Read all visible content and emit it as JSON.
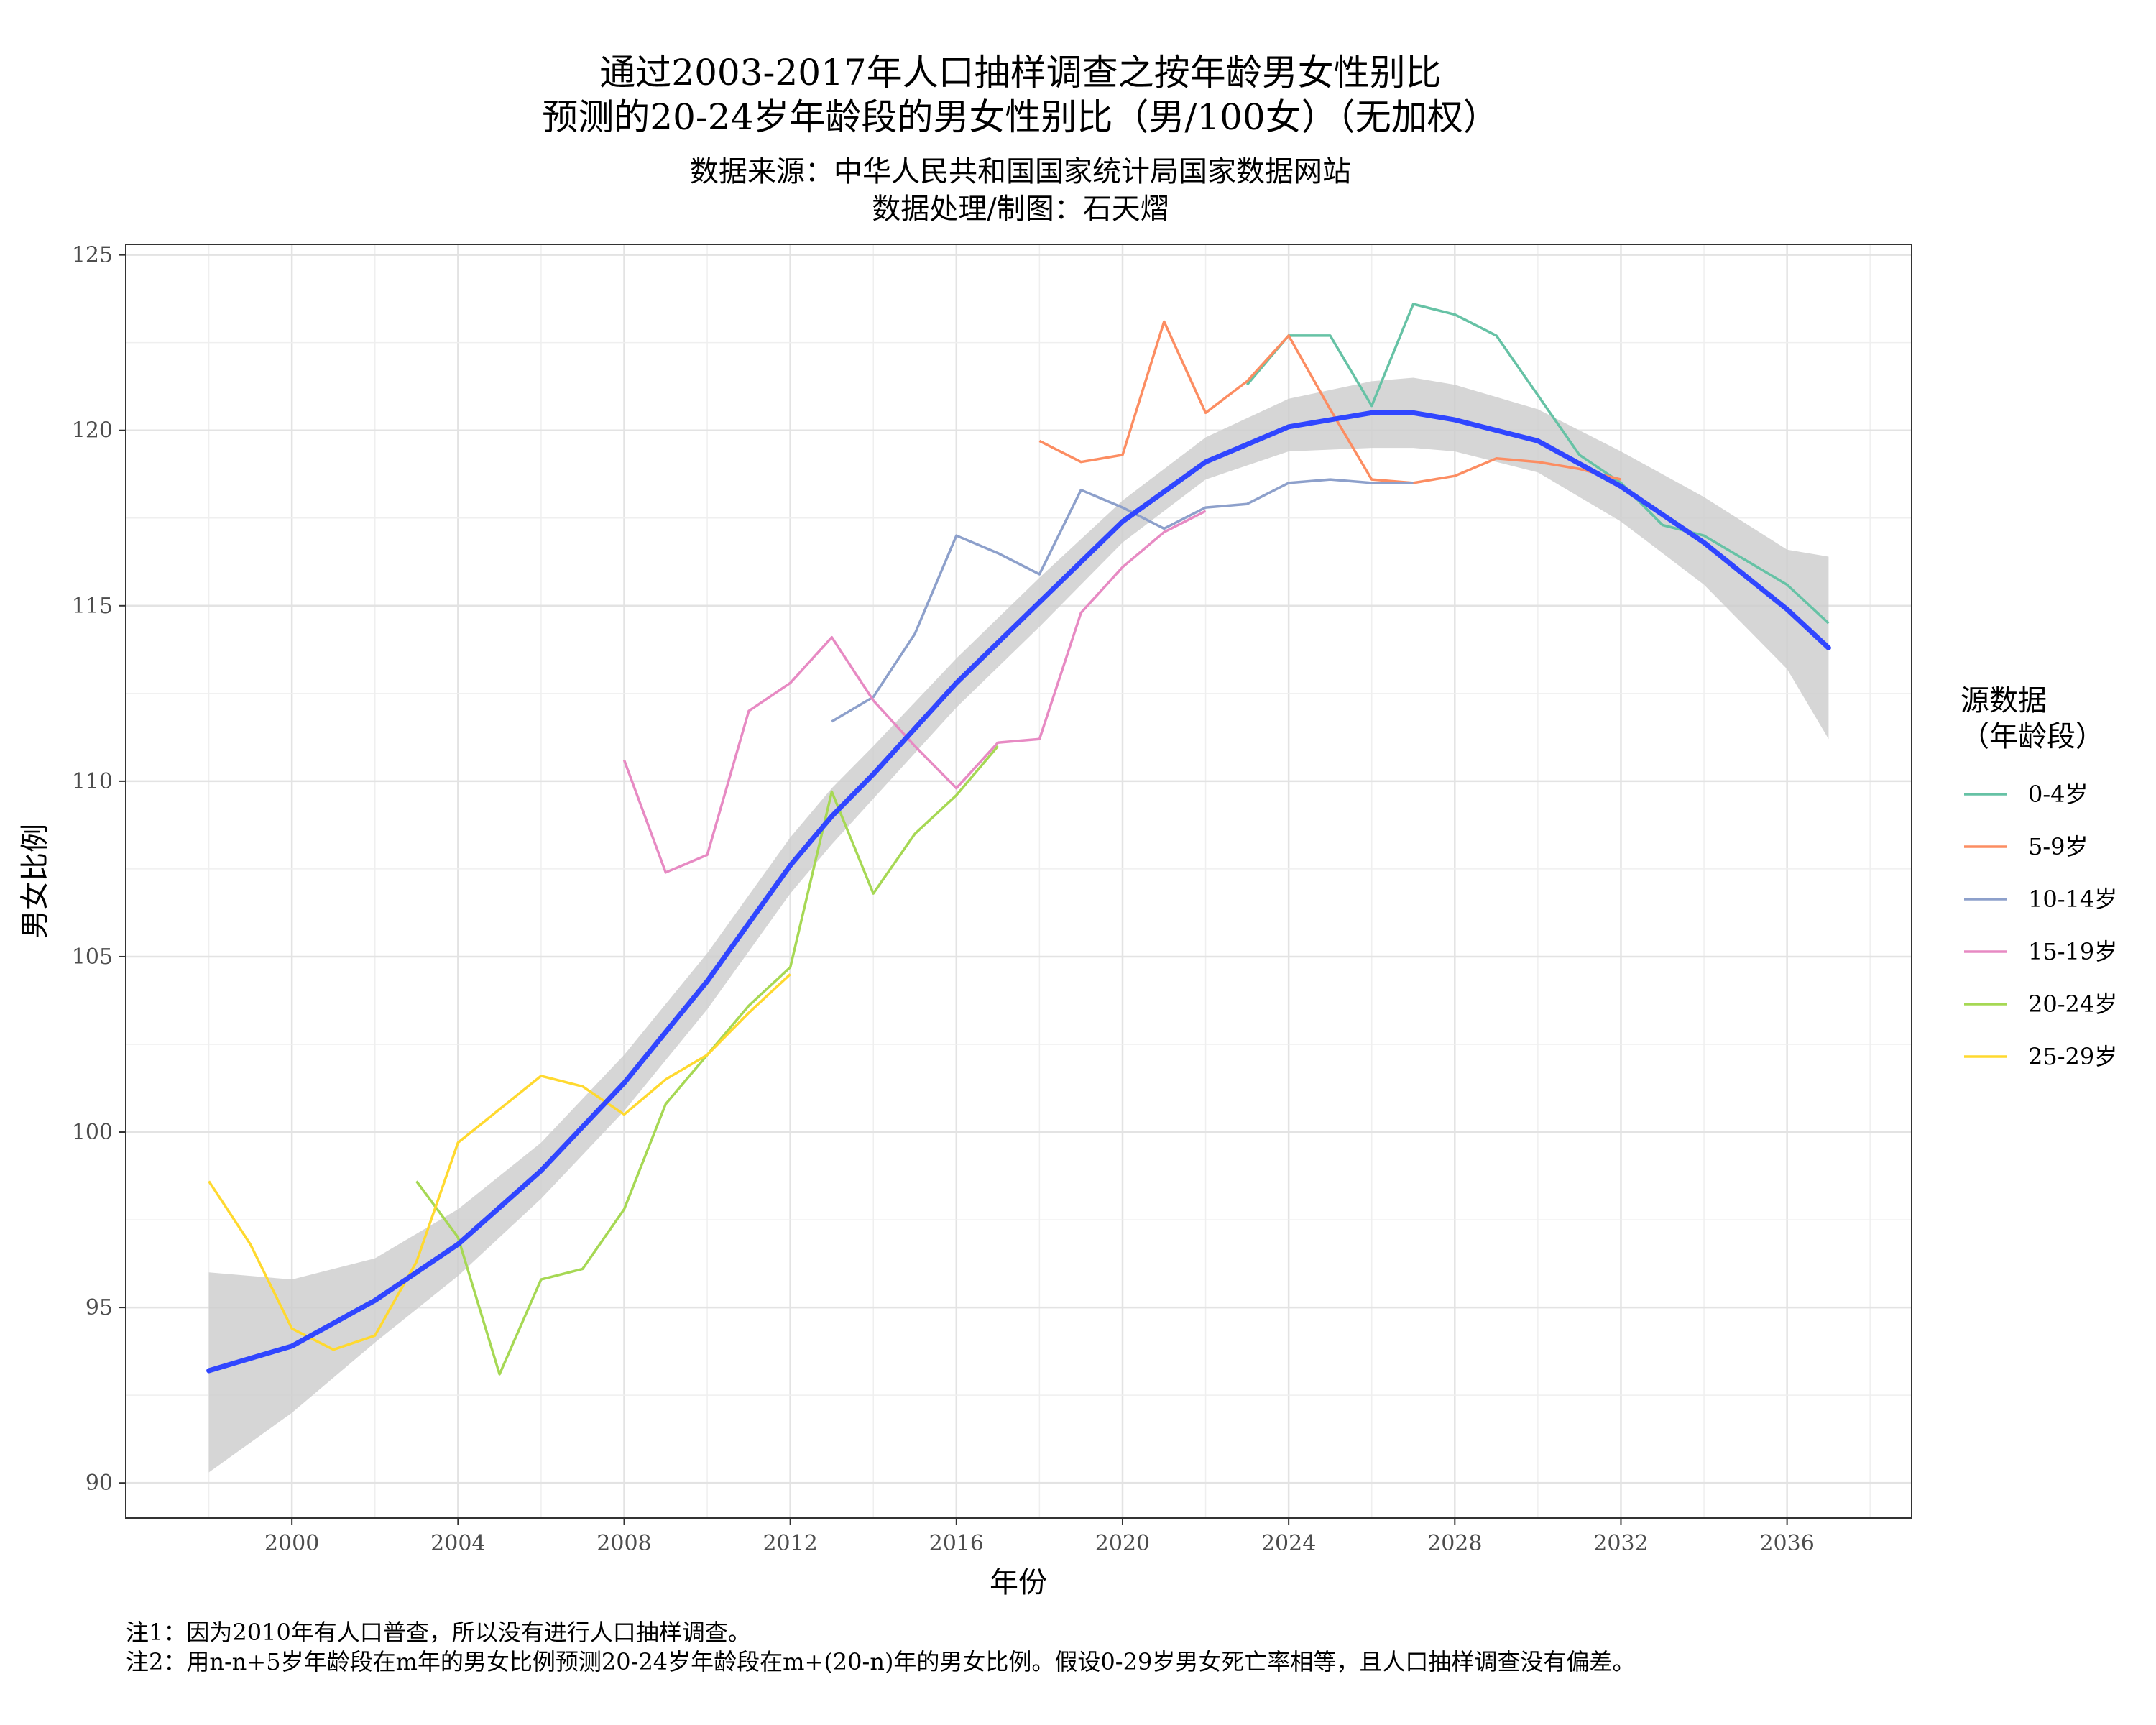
{
  "title_lines": [
    "通过2003-2017年人口抽样调查之按年龄男女性别比",
    "预测的20-24岁年龄段的男女性别比（男/100女）（无加权）"
  ],
  "subtitle_lines": [
    "数据来源：中华人民共和国国家统计局国家数据网站",
    "数据处理/制图：石天熠"
  ],
  "caption_lines": [
    "注1：因为2010年有人口普查，所以没有进行人口抽样调查。",
    "注2：用n-n+5岁年龄段在m年的男女比例预测20-24岁年龄段在m+(20-n)年的男女比例。假设0-29岁男女死亡率相等，且人口抽样调查没有偏差。"
  ],
  "chart_data": {
    "type": "line",
    "xlabel": "年份",
    "ylabel": "男女比例",
    "xlim": [
      1996,
      2039
    ],
    "ylim": [
      89,
      125.3
    ],
    "x_ticks": [
      2000,
      2004,
      2008,
      2012,
      2016,
      2020,
      2024,
      2028,
      2032,
      2036
    ],
    "y_ticks": [
      90,
      95,
      100,
      105,
      110,
      115,
      120,
      125
    ],
    "grid": true,
    "legend": {
      "title_lines": [
        "源数据",
        "（年龄段）"
      ],
      "placement": "right"
    },
    "series": [
      {
        "name": "0-4岁",
        "color": "#66c2a5",
        "x": [
          2023,
          2024,
          2025,
          2026,
          2027,
          2028,
          2029,
          2030,
          2031,
          2032,
          2033,
          2034,
          2035,
          2036,
          2037
        ],
        "y": [
          121.3,
          122.7,
          122.7,
          120.7,
          123.6,
          123.3,
          122.7,
          121.0,
          119.3,
          118.5,
          117.3,
          117.0,
          116.3,
          115.6,
          114.5
        ]
      },
      {
        "name": "5-9岁",
        "color": "#fc8d62",
        "x": [
          2018,
          2019,
          2020,
          2021,
          2022,
          2023,
          2024,
          2025,
          2026,
          2027,
          2028,
          2029,
          2030,
          2031,
          2032
        ],
        "y": [
          119.7,
          119.1,
          119.3,
          123.1,
          120.5,
          121.4,
          122.7,
          120.6,
          118.6,
          118.5,
          118.7,
          119.2,
          119.1,
          118.9,
          118.6
        ]
      },
      {
        "name": "10-14岁",
        "color": "#8da0cb",
        "x": [
          2013,
          2014,
          2015,
          2016,
          2017,
          2018,
          2019,
          2020,
          2021,
          2022,
          2023,
          2024,
          2025,
          2026,
          2027
        ],
        "y": [
          111.7,
          112.4,
          114.2,
          117.0,
          116.5,
          115.9,
          118.3,
          117.8,
          117.2,
          117.8,
          117.9,
          118.5,
          118.6,
          118.5,
          118.5
        ]
      },
      {
        "name": "15-19岁",
        "color": "#e78ac3",
        "x": [
          2008,
          2009,
          2010,
          2011,
          2012,
          2013,
          2014,
          2015,
          2016,
          2017,
          2018,
          2019,
          2020,
          2021,
          2022
        ],
        "y": [
          110.6,
          107.4,
          107.9,
          112.0,
          112.8,
          114.1,
          112.3,
          111.0,
          109.8,
          111.1,
          111.2,
          114.8,
          116.1,
          117.1,
          117.7
        ]
      },
      {
        "name": "20-24岁",
        "color": "#a6d854",
        "x": [
          2003,
          2004,
          2005,
          2006,
          2007,
          2008,
          2009,
          2011,
          2012,
          2013,
          2014,
          2015,
          2016,
          2017
        ],
        "y": [
          98.6,
          97.0,
          93.1,
          95.8,
          96.1,
          97.8,
          100.8,
          103.6,
          104.7,
          109.7,
          106.8,
          108.5,
          109.6,
          111.0
        ]
      },
      {
        "name": "25-29岁",
        "color": "#ffd92f",
        "x": [
          1998,
          1999,
          2000,
          2001,
          2002,
          2003,
          2004,
          2006,
          2007,
          2008,
          2009,
          2010,
          2011,
          2012
        ],
        "y": [
          98.6,
          96.8,
          94.4,
          93.8,
          94.2,
          96.3,
          99.7,
          101.6,
          101.3,
          100.5,
          101.5,
          102.2,
          103.4,
          104.5
        ]
      }
    ],
    "smooth": {
      "color": "#3046ff",
      "band_color": "#cccccc",
      "x": [
        1998,
        2000,
        2002,
        2004,
        2006,
        2008,
        2010,
        2012,
        2013,
        2014,
        2016,
        2018,
        2020,
        2022,
        2024,
        2026,
        2027,
        2028,
        2030,
        2032,
        2034,
        2036,
        2037
      ],
      "y": [
        93.2,
        93.9,
        95.2,
        96.8,
        98.9,
        101.4,
        104.3,
        107.6,
        109.0,
        110.2,
        112.8,
        115.1,
        117.4,
        119.1,
        120.1,
        120.5,
        120.5,
        120.3,
        119.7,
        118.4,
        116.8,
        114.9,
        113.8
      ],
      "lower": [
        90.3,
        92.0,
        94.0,
        95.9,
        98.1,
        100.6,
        103.5,
        106.8,
        108.2,
        109.5,
        112.1,
        114.4,
        116.8,
        118.6,
        119.4,
        119.5,
        119.5,
        119.4,
        118.8,
        117.4,
        115.6,
        113.2,
        111.2
      ],
      "upper": [
        96.0,
        95.8,
        96.4,
        97.8,
        99.7,
        102.2,
        105.1,
        108.4,
        109.8,
        111.0,
        113.5,
        115.8,
        118.0,
        119.8,
        120.9,
        121.4,
        121.5,
        121.3,
        120.6,
        119.4,
        118.1,
        116.6,
        116.4
      ]
    }
  }
}
